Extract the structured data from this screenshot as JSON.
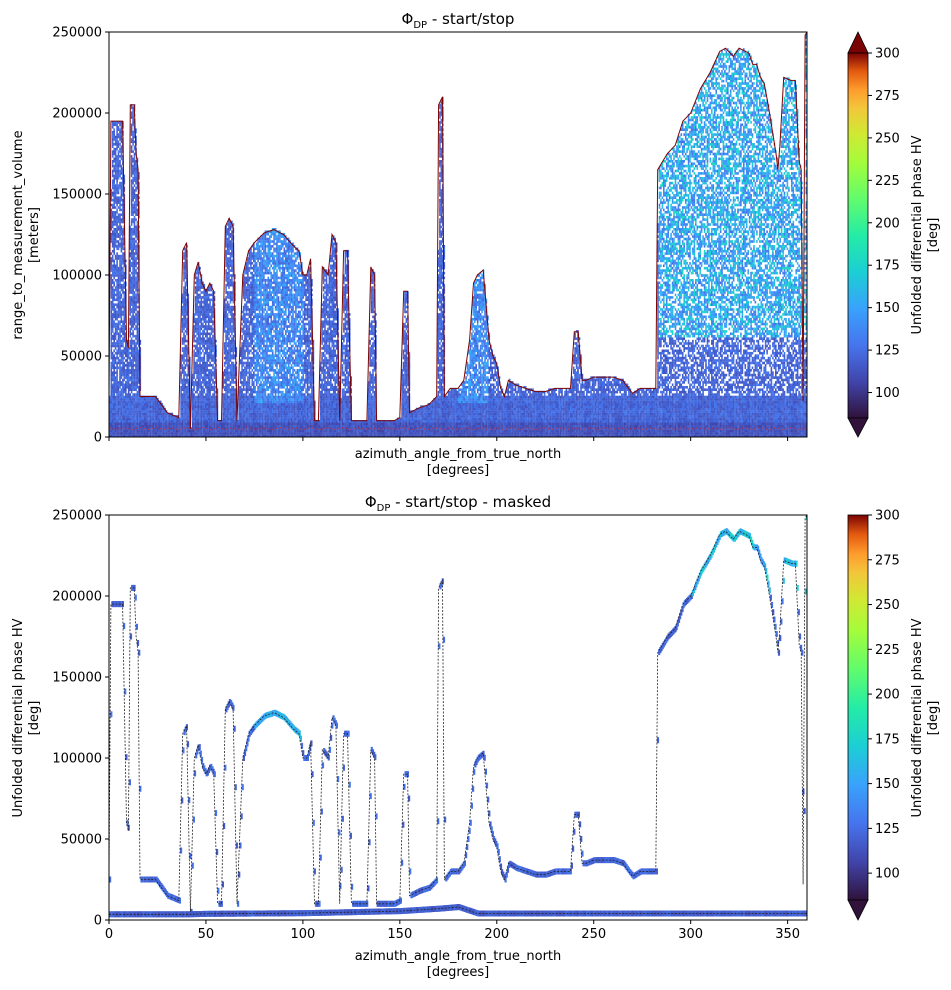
{
  "chart_data": [
    {
      "type": "heatmap",
      "title": "Φ",
      "title_sub": "DP",
      "title_rest": " - start/stop",
      "xlabel": "azimuth_angle_from_true_north",
      "xunit": "[degrees]",
      "ylabel": "range_to_measurement_volume",
      "yunit": "[meters]",
      "xlim": [
        0,
        360
      ],
      "ylim": [
        0,
        250000
      ],
      "xticks": [],
      "yticks": [
        0,
        50000,
        100000,
        150000,
        200000,
        250000
      ],
      "grid": false,
      "colorbar": {
        "label": "Unfolded differential phase HV",
        "unit": "[deg]",
        "colormap": "turbo",
        "range": [
          85,
          300
        ],
        "ticks": [
          100,
          125,
          150,
          175,
          200,
          225,
          250,
          275,
          300
        ],
        "extend": "both"
      },
      "top_boundary": [
        [
          0,
          25000
        ],
        [
          1,
          195000
        ],
        [
          7,
          195000
        ],
        [
          9,
          60000
        ],
        [
          10,
          55000
        ],
        [
          11,
          205000
        ],
        [
          13,
          205000
        ],
        [
          14,
          175000
        ],
        [
          15,
          165000
        ],
        [
          16,
          25000
        ],
        [
          24,
          25000
        ],
        [
          27,
          20000
        ],
        [
          30,
          15000
        ],
        [
          36,
          12000
        ],
        [
          38,
          115000
        ],
        [
          40,
          120000
        ],
        [
          42,
          5000
        ],
        [
          44,
          100000
        ],
        [
          46,
          108000
        ],
        [
          48,
          95000
        ],
        [
          50,
          90000
        ],
        [
          52,
          95000
        ],
        [
          54,
          90000
        ],
        [
          56,
          10000
        ],
        [
          58,
          10000
        ],
        [
          60,
          130000
        ],
        [
          62,
          135000
        ],
        [
          64,
          130000
        ],
        [
          66,
          10000
        ],
        [
          69,
          100000
        ],
        [
          72,
          115000
        ],
        [
          75,
          120000
        ],
        [
          80,
          126000
        ],
        [
          85,
          128000
        ],
        [
          90,
          125000
        ],
        [
          95,
          118000
        ],
        [
          98,
          115000
        ],
        [
          100,
          100000
        ],
        [
          102,
          100000
        ],
        [
          104,
          110000
        ],
        [
          106,
          10000
        ],
        [
          108,
          10000
        ],
        [
          110,
          105000
        ],
        [
          113,
          100000
        ],
        [
          115,
          125000
        ],
        [
          117,
          120000
        ],
        [
          119,
          10000
        ],
        [
          121,
          115000
        ],
        [
          123,
          115000
        ],
        [
          125,
          10000
        ],
        [
          127,
          10000
        ],
        [
          130,
          10000
        ],
        [
          133,
          10000
        ],
        [
          135,
          105000
        ],
        [
          137,
          100000
        ],
        [
          138,
          10000
        ],
        [
          140,
          10000
        ],
        [
          143,
          10000
        ],
        [
          147,
          10000
        ],
        [
          150,
          12000
        ],
        [
          152,
          90000
        ],
        [
          154,
          90000
        ],
        [
          155,
          15000
        ],
        [
          160,
          18000
        ],
        [
          165,
          20000
        ],
        [
          169,
          25000
        ],
        [
          170,
          205000
        ],
        [
          172,
          210000
        ],
        [
          173,
          25000
        ],
        [
          176,
          30000
        ],
        [
          180,
          30000
        ],
        [
          183,
          35000
        ],
        [
          186,
          60000
        ],
        [
          188,
          95000
        ],
        [
          190,
          100000
        ],
        [
          193,
          103000
        ],
        [
          196,
          60000
        ],
        [
          198,
          50000
        ],
        [
          200,
          45000
        ],
        [
          202,
          30000
        ],
        [
          204,
          25000
        ],
        [
          206,
          35000
        ],
        [
          210,
          32000
        ],
        [
          215,
          30000
        ],
        [
          220,
          28000
        ],
        [
          225,
          28000
        ],
        [
          230,
          30000
        ],
        [
          235,
          30000
        ],
        [
          238,
          30000
        ],
        [
          240,
          65000
        ],
        [
          242,
          65000
        ],
        [
          244,
          35000
        ],
        [
          246,
          35000
        ],
        [
          250,
          37000
        ],
        [
          255,
          37000
        ],
        [
          260,
          37000
        ],
        [
          265,
          35000
        ],
        [
          268,
          30000
        ],
        [
          270,
          27000
        ],
        [
          274,
          30000
        ],
        [
          278,
          30000
        ],
        [
          282,
          30000
        ],
        [
          283,
          165000
        ],
        [
          288,
          175000
        ],
        [
          292,
          180000
        ],
        [
          296,
          195000
        ],
        [
          300,
          200000
        ],
        [
          305,
          215000
        ],
        [
          310,
          225000
        ],
        [
          315,
          238000
        ],
        [
          318,
          240000
        ],
        [
          322,
          235000
        ],
        [
          325,
          240000
        ],
        [
          330,
          237000
        ],
        [
          332,
          230000
        ],
        [
          334,
          230000
        ],
        [
          336,
          222000
        ],
        [
          338,
          218000
        ],
        [
          340,
          205000
        ],
        [
          342,
          190000
        ],
        [
          344,
          175000
        ],
        [
          345,
          165000
        ],
        [
          346,
          180000
        ],
        [
          348,
          222000
        ],
        [
          352,
          220000
        ],
        [
          354,
          220000
        ],
        [
          356,
          170000
        ],
        [
          357,
          165000
        ],
        [
          358,
          22000
        ],
        [
          359,
          248000
        ],
        [
          360,
          250000
        ]
      ]
    },
    {
      "type": "heatmap",
      "title": "Φ",
      "title_sub": "DP",
      "title_rest": " - start/stop - masked",
      "xlabel": "azimuth_angle_from_true_north",
      "xunit": "[degrees]",
      "ylabel": "Unfolded differential phase HV",
      "yunit": "[deg]",
      "xlim": [
        0,
        360
      ],
      "ylim": [
        0,
        250000
      ],
      "xticks": [
        0,
        50,
        100,
        150,
        200,
        250,
        300,
        350
      ],
      "yticks": [
        0,
        50000,
        100000,
        150000,
        200000,
        250000
      ],
      "grid": false,
      "colorbar": {
        "label": "Unfolded differential phase HV",
        "unit": "[deg]",
        "colormap": "turbo",
        "range": [
          85,
          300
        ],
        "ticks": [
          100,
          125,
          150,
          175,
          200,
          225,
          250,
          275,
          300
        ],
        "extend": "both"
      },
      "bottom_band": [
        [
          0,
          3500
        ],
        [
          40,
          3500
        ],
        [
          50,
          3800
        ],
        [
          100,
          4200
        ],
        [
          150,
          5500
        ],
        [
          170,
          7000
        ],
        [
          180,
          8000
        ],
        [
          190,
          4000
        ],
        [
          200,
          4000
        ],
        [
          360,
          4000
        ]
      ]
    }
  ]
}
